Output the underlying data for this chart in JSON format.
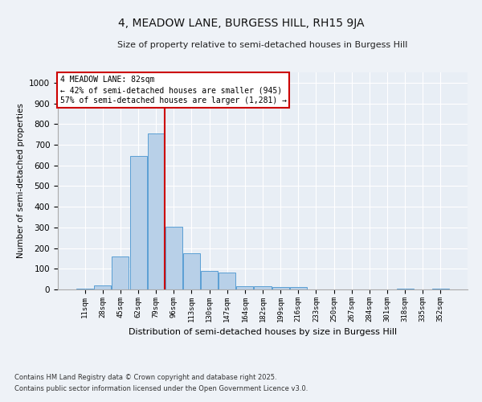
{
  "title": "4, MEADOW LANE, BURGESS HILL, RH15 9JA",
  "subtitle": "Size of property relative to semi-detached houses in Burgess Hill",
  "xlabel": "Distribution of semi-detached houses by size in Burgess Hill",
  "ylabel": "Number of semi-detached properties",
  "categories": [
    "11sqm",
    "28sqm",
    "45sqm",
    "62sqm",
    "79sqm",
    "96sqm",
    "113sqm",
    "130sqm",
    "147sqm",
    "164sqm",
    "182sqm",
    "199sqm",
    "216sqm",
    "233sqm",
    "250sqm",
    "267sqm",
    "284sqm",
    "301sqm",
    "318sqm",
    "335sqm",
    "352sqm"
  ],
  "values": [
    5,
    20,
    160,
    645,
    755,
    305,
    175,
    90,
    80,
    15,
    15,
    10,
    12,
    0,
    0,
    0,
    0,
    0,
    3,
    0,
    3
  ],
  "bar_color": "#b8d0e8",
  "bar_edge_color": "#5a9fd4",
  "vline_x": 4.5,
  "vline_color": "#cc0000",
  "annotation_title": "4 MEADOW LANE: 82sqm",
  "annotation_line1": "← 42% of semi-detached houses are smaller (945)",
  "annotation_line2": "57% of semi-detached houses are larger (1,281) →",
  "annotation_box_color": "#cc0000",
  "ylim": [
    0,
    1050
  ],
  "yticks": [
    0,
    100,
    200,
    300,
    400,
    500,
    600,
    700,
    800,
    900,
    1000
  ],
  "bg_color": "#e8eef5",
  "fig_bg_color": "#eef2f7",
  "footnote1": "Contains HM Land Registry data © Crown copyright and database right 2025.",
  "footnote2": "Contains public sector information licensed under the Open Government Licence v3.0."
}
